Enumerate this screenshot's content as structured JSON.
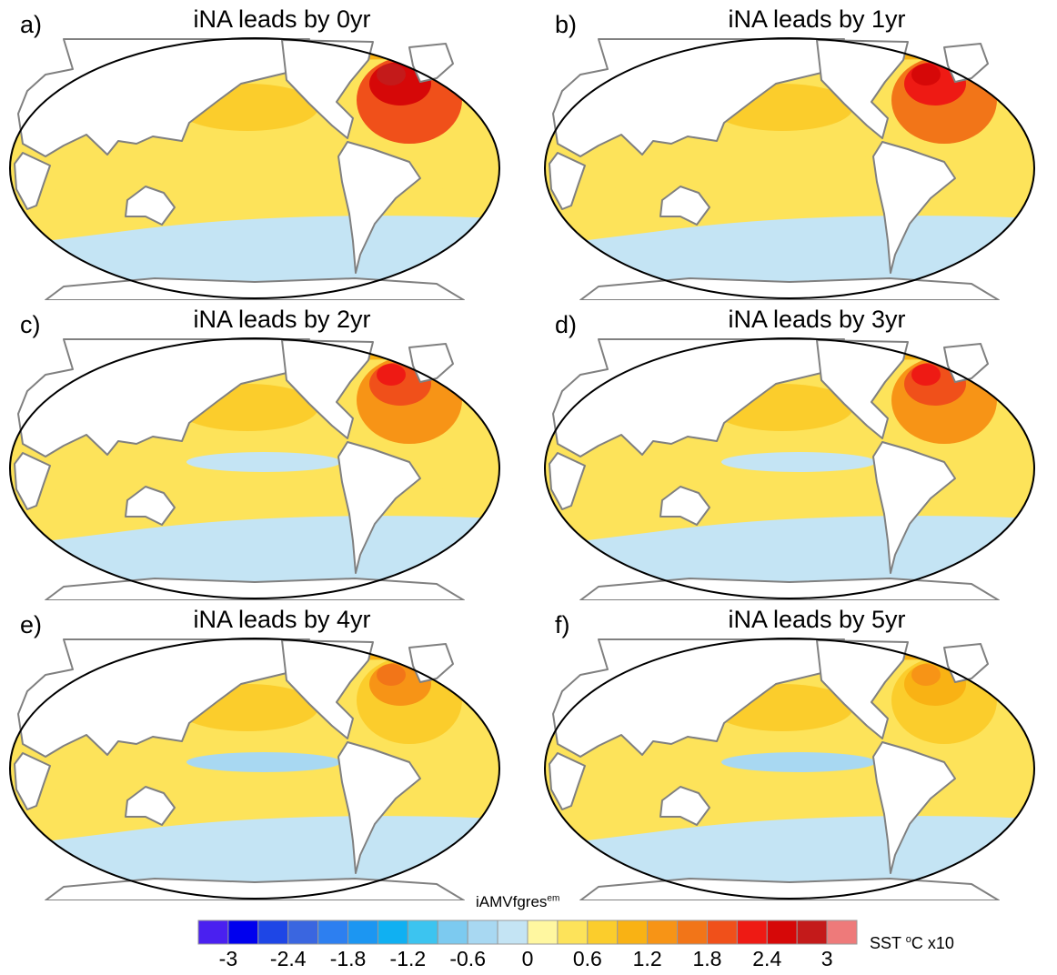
{
  "chart_data": [
    {
      "type": "heatmap",
      "panel_label": "a)",
      "title": "iNA leads by 0yr",
      "lead_years": 0,
      "nh_pacific_level": 0.6,
      "na_max_level": 2.7,
      "tropical_pacific_level": 0.3,
      "southern_ocean_level": -0.3
    },
    {
      "type": "heatmap",
      "panel_label": "b)",
      "title": "iNA leads by 1yr",
      "lead_years": 1,
      "nh_pacific_level": 0.6,
      "na_max_level": 2.4,
      "tropical_pacific_level": 0.3,
      "southern_ocean_level": -0.3
    },
    {
      "type": "heatmap",
      "panel_label": "c)",
      "title": "iNA leads by 2yr",
      "lead_years": 2,
      "nh_pacific_level": 0.6,
      "na_max_level": 2.1,
      "tropical_pacific_level": -0.3,
      "southern_ocean_level": -0.3
    },
    {
      "type": "heatmap",
      "panel_label": "d)",
      "title": "iNA leads by 3yr",
      "lead_years": 3,
      "nh_pacific_level": 0.6,
      "na_max_level": 2.1,
      "tropical_pacific_level": -0.3,
      "southern_ocean_level": -0.3
    },
    {
      "type": "heatmap",
      "panel_label": "e)",
      "title": "iNA leads by 4yr",
      "lead_years": 4,
      "nh_pacific_level": 0.6,
      "na_max_level": 1.5,
      "tropical_pacific_level": -0.6,
      "southern_ocean_level": -0.3
    },
    {
      "type": "heatmap",
      "panel_label": "f)",
      "title": "iNA leads by 5yr",
      "lead_years": 5,
      "nh_pacific_level": 0.6,
      "na_max_level": 1.2,
      "tropical_pacific_level": -0.6,
      "southern_ocean_level": -0.3
    }
  ],
  "colorbar": {
    "title": "iAMVfgres",
    "title_superscript": "em",
    "units_prefix": "SST ",
    "units_superscript": "o",
    "units_suffix": "C x10",
    "levels": [
      -3.3,
      -3,
      -2.7,
      -2.4,
      -2.1,
      -1.8,
      -1.5,
      -1.2,
      -0.9,
      -0.6,
      -0.3,
      0,
      0.3,
      0.6,
      0.9,
      1.2,
      1.5,
      1.8,
      2.1,
      2.4,
      2.7,
      3,
      3.3
    ],
    "colors": [
      "#4a20f0",
      "#0000ee",
      "#1e46e6",
      "#3a66e0",
      "#2d7ff0",
      "#1c96f2",
      "#10b0f2",
      "#3cc4f0",
      "#7ccaf0",
      "#a8d8f2",
      "#c4e4f4",
      "#fff7a0",
      "#fde35a",
      "#fbcd2c",
      "#f9b214",
      "#f79416",
      "#f27518",
      "#f0501a",
      "#ee1a14",
      "#d60808",
      "#c41a1a",
      "#ee7a7a"
    ],
    "tick_labels": [
      "-3",
      "-2.4",
      "-1.8",
      "-1.2",
      "-0.6",
      "0",
      "0.6",
      "1.2",
      "1.8",
      "2.4",
      "3"
    ],
    "tick_values": [
      -3,
      -2.4,
      -1.8,
      -1.2,
      -0.6,
      0,
      0.6,
      1.2,
      1.8,
      2.4,
      3
    ]
  }
}
